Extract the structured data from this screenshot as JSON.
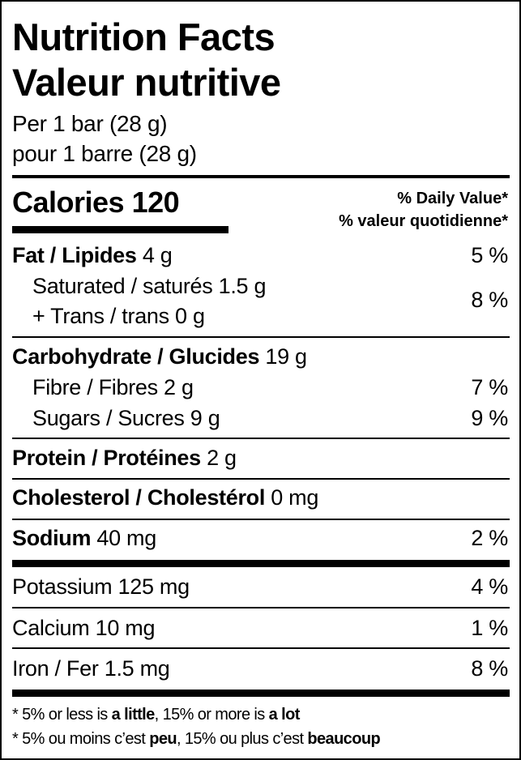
{
  "title_en": "Nutrition Facts",
  "title_fr": "Valeur nutritive",
  "serving_en": "Per 1 bar (28 g)",
  "serving_fr": "pour 1 barre (28 g)",
  "calories_label": "Calories",
  "calories_value": "120",
  "dv_en": "% Daily Value*",
  "dv_fr": "% valeur quotidienne*",
  "nutrients": {
    "fat": {
      "label": "Fat / Lipides",
      "amount": "4 g",
      "dv": "5 %"
    },
    "saturated": {
      "label": "Saturated / saturés",
      "amount": "1.5 g"
    },
    "trans": {
      "label": "+ Trans / trans",
      "amount": "0 g"
    },
    "sat_trans_dv": "8 %",
    "carb": {
      "label": "Carbohydrate / Glucides",
      "amount": "19 g"
    },
    "fibre": {
      "label": "Fibre / Fibres",
      "amount": "2 g",
      "dv": "7 %"
    },
    "sugars": {
      "label": "Sugars / Sucres",
      "amount": "9 g",
      "dv": "9 %"
    },
    "protein": {
      "label": "Protein / Protéines",
      "amount": "2 g"
    },
    "cholesterol": {
      "label": "Cholesterol / Cholestérol",
      "amount": "0 mg"
    },
    "sodium": {
      "label": "Sodium",
      "amount": "40 mg",
      "dv": "2 %"
    },
    "potassium": {
      "label": "Potassium",
      "amount": "125 mg",
      "dv": "4 %"
    },
    "calcium": {
      "label": "Calcium",
      "amount": "10 mg",
      "dv": "1 %"
    },
    "iron": {
      "label": "Iron / Fer",
      "amount": "1.5 mg",
      "dv": "8 %"
    }
  },
  "footnote_en": {
    "a": "* 5% or less is ",
    "b": "a little",
    "c": ", 15% or more is ",
    "d": "a lot"
  },
  "footnote_fr": {
    "a": "* 5% ou moins c’est ",
    "b": "peu",
    "c": ", 15% ou plus c’est ",
    "d": "beaucoup"
  }
}
